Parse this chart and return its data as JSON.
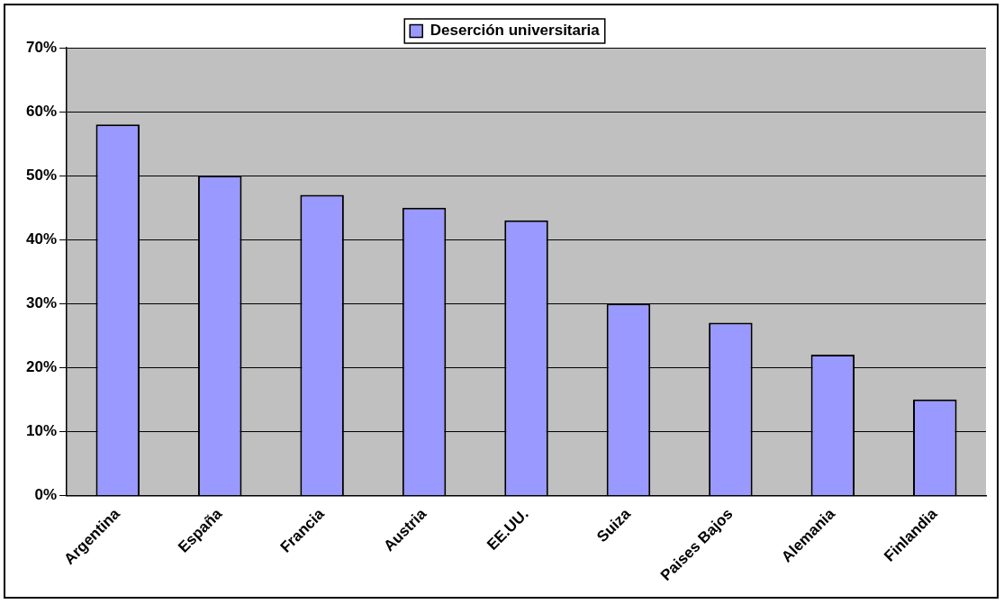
{
  "chart_data": {
    "type": "bar",
    "categories": [
      "Argentina",
      "España",
      "Francia",
      "Austria",
      "EE.UU.",
      "Suiza",
      "Paises Bajos",
      "Alemania",
      "Finlandia"
    ],
    "series": [
      {
        "name": "Deserción universitaria",
        "color": "#9999ff",
        "values": [
          58,
          50,
          47,
          45,
          43,
          30,
          27,
          22,
          15
        ]
      }
    ],
    "ylim": [
      0,
      70
    ],
    "yticks": [
      {
        "value": 0,
        "label": "0%"
      },
      {
        "value": 10,
        "label": "10%"
      },
      {
        "value": 20,
        "label": "20%"
      },
      {
        "value": 30,
        "label": "30%"
      },
      {
        "value": 40,
        "label": "40%"
      },
      {
        "value": 50,
        "label": "50%"
      },
      {
        "value": 60,
        "label": "60%"
      },
      {
        "value": 70,
        "label": "70%"
      }
    ],
    "grid": "y",
    "legend": "top"
  }
}
